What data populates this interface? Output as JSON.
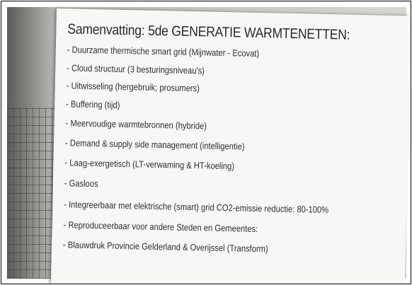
{
  "slide": {
    "title": "Samenvatting: 5de GENERATIE WARMTENETTEN:",
    "items": [
      "- Duurzame thermische smart grid (Mijnwater - Ecovat)",
      "- Cloud structuur (3 besturingsniveau's)",
      "- Uitwisseling (hergebruik; prosumers)",
      "- Buffering (tijd)",
      "- Meervoudige warmtebronnen (hybride)",
      "- Demand & supply side management (intelligentie)",
      "- Laag-exergetisch (LT-verwaming & HT-koeling)",
      "- Gasloos",
      "- Integreerbaar met elektrische (smart) grid CO2-emissie reductie: 80-100%",
      "- Reproduceerbaar voor andere Steden en Gemeentes:",
      "- Blauwdruk Provincie Gelderland & Overijssel (Transform)"
    ]
  }
}
